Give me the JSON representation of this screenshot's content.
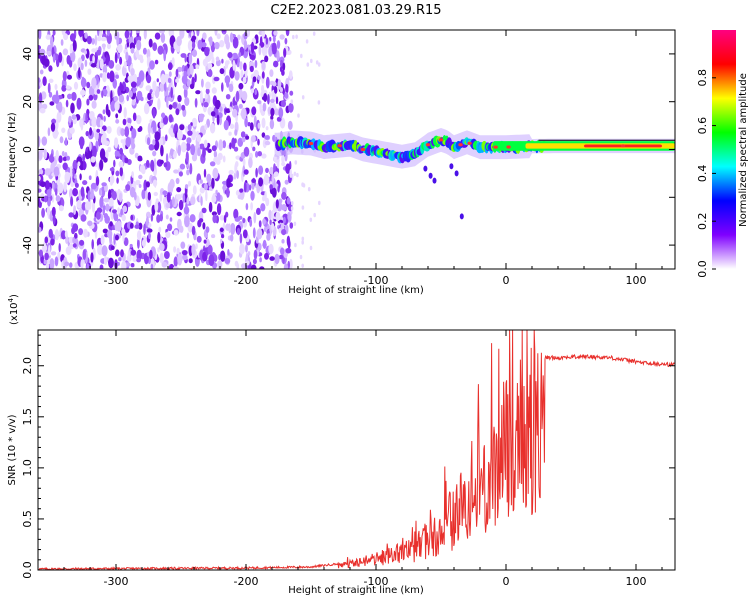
{
  "title": "C2E2.2023.081.03.29.R15",
  "chart_data": [
    {
      "type": "heatmap",
      "name": "spectrogram",
      "xlabel": "Height of straight line (km)",
      "ylabel": "Frequency (Hz)",
      "xlim": [
        -360,
        130
      ],
      "ylim": [
        -50,
        50
      ],
      "xticks": [
        -300,
        -200,
        -100,
        0,
        100
      ],
      "xtick_labels": [
        "-300",
        "-200",
        "-100",
        "0",
        "100"
      ],
      "yticks": [
        -40,
        -20,
        0,
        20,
        40
      ],
      "ytick_labels": [
        "-40",
        "-20",
        "0",
        "20",
        "40"
      ],
      "signal_trace": {
        "x": [
          -175,
          -165,
          -150,
          -140,
          -130,
          -120,
          -110,
          -100,
          -90,
          -80,
          -70,
          -60,
          -50,
          -45,
          -40,
          -35,
          -30,
          -25,
          -20,
          -10,
          0,
          10,
          20,
          40,
          60,
          80,
          100,
          130
        ],
        "y": [
          2,
          3,
          2.5,
          1,
          1.5,
          2,
          0,
          -1,
          -2,
          -3,
          -2,
          2,
          4,
          3,
          1,
          2,
          3,
          2,
          1,
          1,
          1,
          1.2,
          1.4,
          1.5,
          1.5,
          1.5,
          1.5,
          1.5
        ]
      },
      "noise_region_x": [
        -360,
        -165
      ],
      "colorbar": {
        "label": "Normalized spectral amplitude",
        "range": [
          0,
          1
        ],
        "ticks": [
          0.0,
          0.2,
          0.4,
          0.6,
          0.8
        ],
        "tick_labels": [
          "0.0",
          "0.2",
          "0.4",
          "0.6",
          "0.8"
        ],
        "colors": [
          "#ffffff",
          "#7f00ff",
          "#0000ff",
          "#00ffff",
          "#00ff00",
          "#ffff00",
          "#ff0000",
          "#ff0080"
        ]
      }
    },
    {
      "type": "line",
      "name": "snr",
      "xlabel": "Height of straight line (km)",
      "ylabel": "SNR (10 * v/v)",
      "scale_label": "(x10",
      "scale_exp": "4",
      "scale_close": ")",
      "xlim": [
        -360,
        130
      ],
      "ylim": [
        0,
        2.35
      ],
      "xticks": [
        -300,
        -200,
        -100,
        0,
        100
      ],
      "xtick_labels": [
        "-300",
        "-200",
        "-100",
        "0",
        "100"
      ],
      "yticks": [
        0.0,
        0.5,
        1.0,
        1.5,
        2.0
      ],
      "ytick_labels": [
        "0.0",
        "0.5",
        "1.0",
        "1.5",
        "2.0"
      ],
      "color": "#e8302c",
      "envelope": {
        "x": [
          -360,
          -200,
          -150,
          -130,
          -110,
          -90,
          -70,
          -60,
          -50,
          -40,
          -30,
          -20,
          -15,
          -10,
          -5,
          0,
          5,
          10,
          15,
          20,
          25,
          30,
          40,
          60,
          80,
          90,
          100,
          110,
          130
        ],
        "y": [
          0.01,
          0.02,
          0.03,
          0.06,
          0.12,
          0.2,
          0.3,
          0.45,
          0.6,
          0.75,
          1.05,
          1.3,
          1.4,
          1.5,
          1.6,
          1.75,
          1.85,
          1.95,
          2.0,
          2.03,
          2.05,
          2.08,
          2.08,
          2.09,
          2.08,
          2.06,
          2.04,
          2.02,
          2.01
        ]
      }
    }
  ]
}
